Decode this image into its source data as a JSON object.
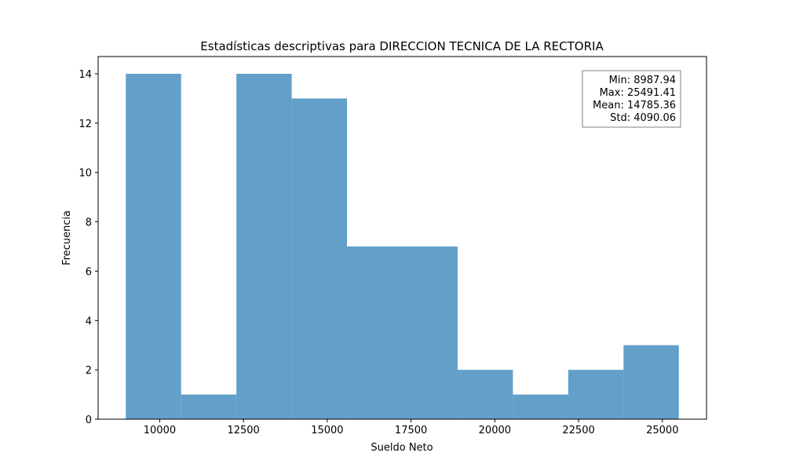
{
  "chart_data": {
    "type": "bar",
    "title": "Estadísticas descriptivas para DIRECCION TECNICA DE LA RECTORIA",
    "xlabel": "Sueldo Neto",
    "ylabel": "Frecuencia",
    "xlim": [
      8162.76,
      26316.59
    ],
    "ylim": [
      0,
      14.7
    ],
    "xticks": [
      10000,
      12500,
      15000,
      17500,
      20000,
      22500,
      25000
    ],
    "yticks": [
      0,
      2,
      4,
      6,
      8,
      10,
      12,
      14
    ],
    "bin_edges": [
      8987.94,
      10638.29,
      12288.63,
      13938.98,
      15589.33,
      17239.68,
      18890.02,
      20540.37,
      22190.72,
      23841.06,
      25491.41
    ],
    "values": [
      14,
      1,
      14,
      13,
      7,
      7,
      2,
      1,
      2,
      3
    ],
    "bar_color": "#1f77b4",
    "bar_alpha": 0.7,
    "grid": false,
    "stats_box": {
      "position": "top-right",
      "lines": [
        "Min: 8987.94",
        "Max: 25491.41",
        "Mean: 14785.36",
        "Std: 4090.06"
      ]
    }
  }
}
